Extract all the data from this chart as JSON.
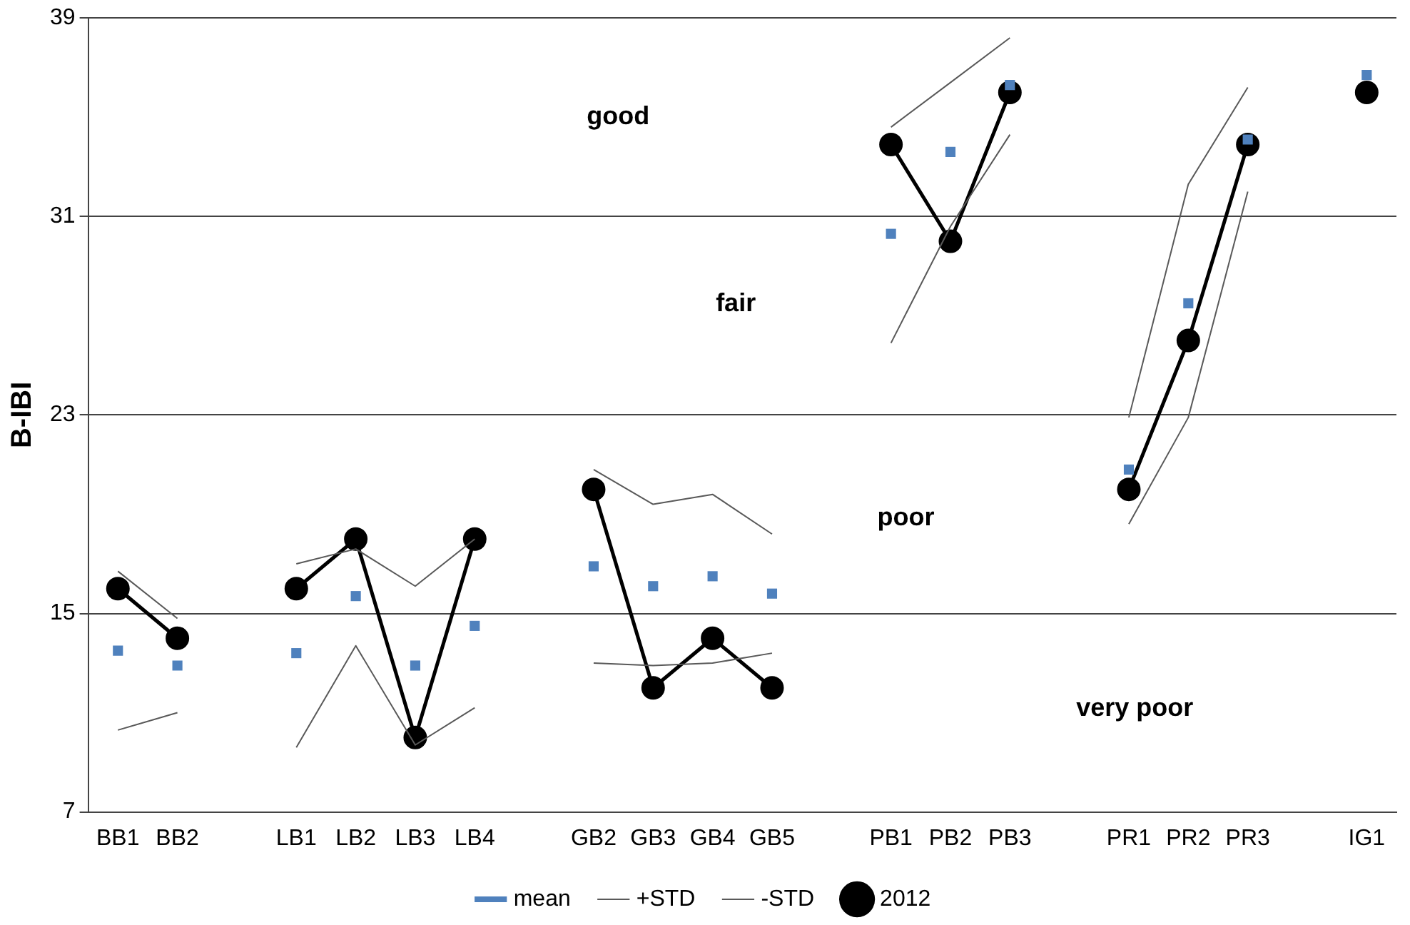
{
  "chart_data": {
    "type": "line",
    "ylabel": "B-IBI",
    "categories": [
      "BB1",
      "BB2",
      null,
      "LB1",
      "LB2",
      "LB3",
      "LB4",
      null,
      "GB2",
      "GB3",
      "GB4",
      "GB5",
      null,
      "PB1",
      "PB2",
      "PB3",
      null,
      "PR1",
      "PR2",
      "PR3",
      null,
      "IG1"
    ],
    "series": [
      {
        "name": "mean",
        "type": "scatter",
        "color": "#4f81bd",
        "values": [
          13.5,
          12.9,
          null,
          13.4,
          15.7,
          12.9,
          14.5,
          null,
          16.9,
          16.1,
          16.5,
          15.8,
          null,
          30.3,
          33.6,
          36.3,
          null,
          20.8,
          27.5,
          34.1,
          null,
          36.7
        ]
      },
      {
        "name": "+STD",
        "type": "line",
        "marker": "none",
        "color": "#595959",
        "values": [
          16.7,
          14.8,
          null,
          17.0,
          17.6,
          16.1,
          18.0,
          null,
          20.8,
          19.4,
          19.8,
          18.2,
          null,
          34.6,
          36.4,
          38.2,
          null,
          22.9,
          32.3,
          36.2,
          null,
          null
        ]
      },
      {
        "name": "-STD",
        "type": "line",
        "marker": "none",
        "color": "#595959",
        "values": [
          10.3,
          11.0,
          null,
          9.6,
          13.7,
          9.7,
          11.2,
          null,
          13.0,
          12.9,
          13.0,
          13.4,
          null,
          25.9,
          30.6,
          34.3,
          null,
          18.6,
          22.9,
          32.0,
          null,
          null
        ]
      },
      {
        "name": "2012",
        "type": "line",
        "marker": "circle",
        "color": "#000000",
        "values": [
          16.0,
          14.0,
          null,
          16.0,
          18.0,
          10.0,
          18.0,
          null,
          20.0,
          12.0,
          14.0,
          12.0,
          null,
          33.9,
          30.0,
          36.0,
          null,
          20.0,
          26.0,
          33.9,
          null,
          36.0
        ]
      }
    ],
    "ylim": [
      7,
      39
    ],
    "yticks": [
      7,
      15,
      23,
      31,
      39
    ],
    "grid": "y",
    "legend": "bottom",
    "annotations": [
      "good",
      "fair",
      "poor",
      "very poor"
    ]
  }
}
